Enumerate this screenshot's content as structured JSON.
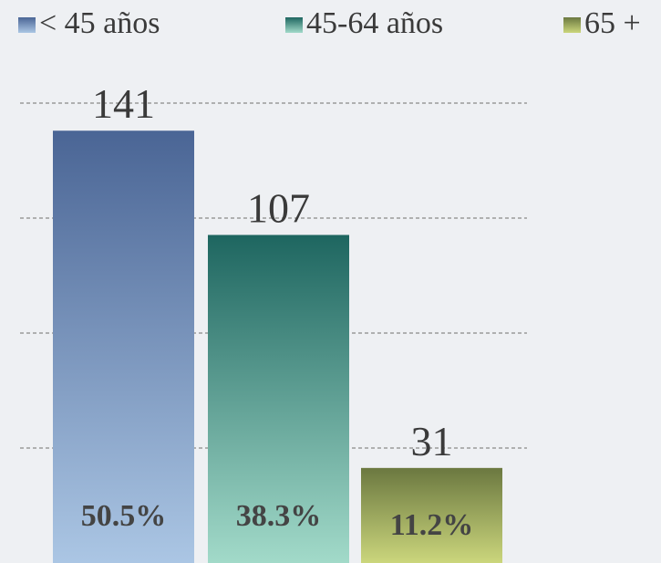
{
  "chart_data": {
    "type": "bar",
    "series": [
      {
        "name": "< 45  años",
        "colors": [
          "#4a6595",
          "#abc6e4"
        ],
        "values": [
          141
        ]
      },
      {
        "name": "45-64 años",
        "colors": [
          "#1e6660",
          "#a2dac9"
        ],
        "values": [
          107
        ]
      },
      {
        "name": "65 +",
        "colors": [
          "#6b7840",
          "#cbd67c"
        ],
        "values": [
          31
        ]
      }
    ],
    "share_labels": [
      "50.5%",
      "38.3%",
      "11.2%"
    ],
    "ylim": [
      0,
      150
    ],
    "gridlines": [
      37.5,
      75,
      112.5,
      150
    ],
    "grid": true
  }
}
